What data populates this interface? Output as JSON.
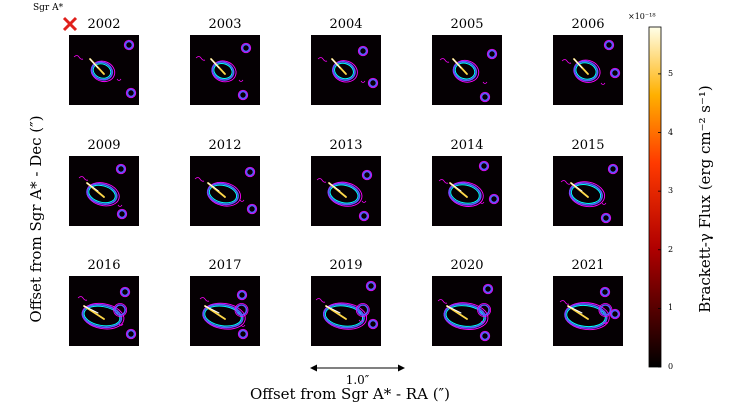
{
  "marker": {
    "label": "Sgr A*",
    "color": "#e0201b"
  },
  "years": [
    "2002",
    "2003",
    "2004",
    "2005",
    "2006",
    "2009",
    "2012",
    "2013",
    "2014",
    "2015",
    "2016",
    "2017",
    "2019",
    "2020",
    "2021"
  ],
  "axes": {
    "ylabel": "Offset from Sgr A* - Dec (″)",
    "xlabel": "Offset from Sgr A* - RA (″)",
    "scale_bar": "1.0″"
  },
  "colorbar": {
    "label": "Brackett-γ Flux (erg cm⁻² s⁻¹)",
    "multiplier": "×10⁻¹⁸",
    "ticks": [
      "0",
      "1",
      "2",
      "3",
      "4",
      "5"
    ],
    "range": [
      0,
      5.8
    ]
  },
  "contour_colors": {
    "outer": "#ff00ff",
    "mid": "#5a5aff",
    "inner": "#00ffff"
  }
}
